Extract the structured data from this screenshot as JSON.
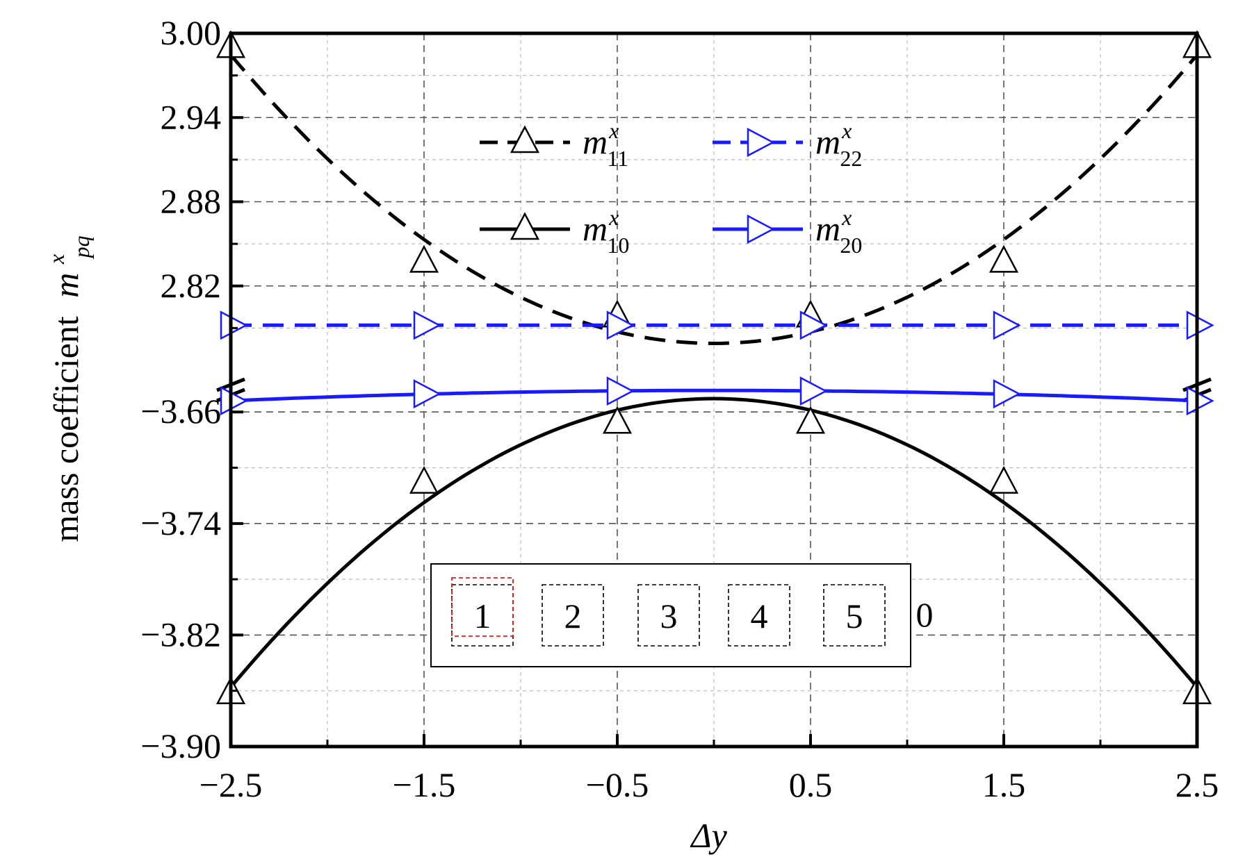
{
  "chart_data": {
    "type": "line",
    "xlabel": "Δy",
    "ylabel": "mass coefficient",
    "ylabel_symbol": {
      "base": "m",
      "sup": "x",
      "sub": "pq"
    },
    "x_ticks": [
      "−2.5",
      "−1.5",
      "−0.5",
      "0.5",
      "1.5",
      "2.5"
    ],
    "x_tick_values": [
      -2.5,
      -1.5,
      -0.5,
      0.5,
      1.5,
      2.5
    ],
    "xlim": [
      -2.5,
      2.5
    ],
    "upper_axis": {
      "ylim": [
        2.76,
        3.0
      ],
      "ticks": [
        "2.82",
        "2.88",
        "2.94",
        "3.00"
      ],
      "tick_values": [
        2.82,
        2.88,
        2.94,
        3.0
      ]
    },
    "lower_axis": {
      "ylim": [
        -3.9,
        -3.63
      ],
      "ticks": [
        "−3.90",
        "−3.82",
        "−3.74",
        "−3.66"
      ],
      "tick_values": [
        -3.9,
        -3.82,
        -3.74,
        -3.66
      ]
    },
    "axis_break": true,
    "grid": true,
    "legend_position": "top-center",
    "series": [
      {
        "name": "m11",
        "label_base": "m",
        "label_sup": "x",
        "label_sub": "11",
        "panel": "upper",
        "style": "dashed",
        "color": "#000000",
        "marker": "triangle-up",
        "x": [
          -2.5,
          -1.5,
          -0.5,
          0.5,
          1.5,
          2.5
        ],
        "values": [
          2.99,
          2.837,
          2.798,
          2.798,
          2.837,
          2.99
        ]
      },
      {
        "name": "m22",
        "label_base": "m",
        "label_sup": "x",
        "label_sub": "22",
        "panel": "upper",
        "style": "dashed",
        "color": "#1a1aff",
        "marker": "triangle-right",
        "x": [
          -2.5,
          -1.5,
          -0.5,
          0.5,
          1.5,
          2.5
        ],
        "values": [
          2.792,
          2.792,
          2.792,
          2.792,
          2.792,
          2.792
        ]
      },
      {
        "name": "m10",
        "label_base": "m",
        "label_sup": "x",
        "label_sub": "10",
        "panel": "lower",
        "style": "solid",
        "color": "#000000",
        "marker": "triangle-up",
        "x": [
          -2.5,
          -1.5,
          -0.5,
          0.5,
          1.5,
          2.5
        ],
        "values": [
          -3.862,
          -3.711,
          -3.668,
          -3.668,
          -3.711,
          -3.862
        ]
      },
      {
        "name": "m20",
        "label_base": "m",
        "label_sup": "x",
        "label_sub": "20",
        "panel": "lower",
        "style": "solid",
        "color": "#1a1aff",
        "marker": "triangle-right",
        "x": [
          -2.5,
          -1.5,
          -0.5,
          0.5,
          1.5,
          2.5
        ],
        "values": [
          -3.652,
          -3.647,
          -3.645,
          -3.645,
          -3.647,
          -3.652
        ]
      }
    ],
    "inset_boxes": [
      "1",
      "2",
      "3",
      "4",
      "5"
    ],
    "inset_trailing_label": "0",
    "inset_highlight_index": 0
  }
}
